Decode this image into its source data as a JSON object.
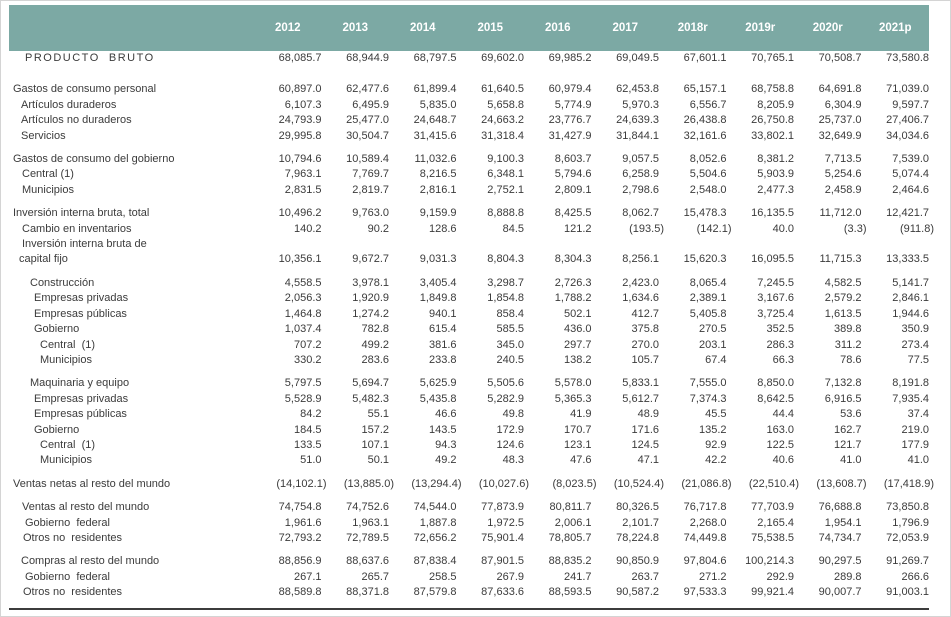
{
  "colors": {
    "header_bg": "#7CA9A4",
    "header_text": "#FFFFFF",
    "body_text": "#3B3B3B",
    "rule": "#3C3C3C"
  },
  "table": {
    "columns": [
      "2012",
      "2013",
      "2014",
      "2015",
      "2016",
      "2017",
      "2018r",
      "2019r",
      "2020r",
      "2021p"
    ],
    "rows": [
      {
        "label": "PRODUCTO  BRUTO",
        "indent": 16,
        "caps": true,
        "values": [
          "68,085.7",
          "68,944.9",
          "68,797.5",
          "69,602.0",
          "69,985.2",
          "69,049.5",
          "67,601.1",
          "70,765.1",
          "70,508.7",
          "73,580.8"
        ]
      },
      {
        "spacer": true,
        "h": 16
      },
      {
        "label": "Gastos de consumo personal",
        "indent": 4,
        "values": [
          "60,897.0",
          "62,477.6",
          "61,899.4",
          "61,640.5",
          "60,979.4",
          "62,453.8",
          "65,157.1",
          "68,758.8",
          "64,691.8",
          "71,039.0"
        ]
      },
      {
        "label": "Artículos duraderos",
        "indent": 12,
        "values": [
          "6,107.3",
          "6,495.9",
          "5,835.0",
          "5,658.8",
          "5,774.9",
          "5,970.3",
          "6,556.7",
          "8,205.9",
          "6,304.9",
          "9,597.7"
        ]
      },
      {
        "label": "Artículos no duraderos",
        "indent": 12,
        "values": [
          "24,793.9",
          "25,477.0",
          "24,648.7",
          "24,663.2",
          "23,776.7",
          "24,639.3",
          "26,438.8",
          "26,750.8",
          "25,737.0",
          "27,406.7"
        ]
      },
      {
        "label": "Servicios",
        "indent": 12,
        "values": [
          "29,995.8",
          "30,504.7",
          "31,415.6",
          "31,318.4",
          "31,427.9",
          "31,844.1",
          "32,161.6",
          "33,802.1",
          "32,649.9",
          "34,034.6"
        ]
      },
      {
        "spacer": true,
        "h": 8
      },
      {
        "label": "Gastos de consumo del gobierno",
        "indent": 4,
        "values": [
          "10,794.6",
          "10,589.4",
          "11,032.6",
          "9,100.3",
          "8,603.7",
          "9,057.5",
          "8,052.6",
          "8,381.2",
          "7,713.5",
          "7,539.0"
        ]
      },
      {
        "label": "Central (1)",
        "indent": 13,
        "values": [
          "7,963.1",
          "7,769.7",
          "8,216.5",
          "6,348.1",
          "5,794.6",
          "6,258.9",
          "5,504.6",
          "5,903.9",
          "5,254.6",
          "5,074.4"
        ]
      },
      {
        "label": "Municipios",
        "indent": 13,
        "values": [
          "2,831.5",
          "2,819.7",
          "2,816.1",
          "2,752.1",
          "2,809.1",
          "2,798.6",
          "2,548.0",
          "2,477.3",
          "2,458.9",
          "2,464.6"
        ]
      },
      {
        "spacer": true,
        "h": 8
      },
      {
        "label": "Inversión interna bruta, total",
        "indent": 4,
        "values": [
          "10,496.2",
          "9,763.0",
          "9,159.9",
          "8,888.8",
          "8,425.5",
          "8,062.7",
          "15,478.3",
          "16,135.5",
          "11,712.0",
          "12,421.7"
        ]
      },
      {
        "label": "Cambio en inventarios",
        "indent": 13,
        "values": [
          "140.2",
          "90.2",
          "128.6",
          "84.5",
          "121.2",
          "(193.5)",
          "(142.1)",
          "40.0",
          "(3.3)",
          "(911.8)"
        ]
      },
      {
        "label": "Inversión interna bruta de",
        "indent": 13,
        "values": [
          "",
          "",
          "",
          "",
          "",
          "",
          "",
          "",
          "",
          ""
        ]
      },
      {
        "label": "capital fijo",
        "indent": 10,
        "values": [
          "10,356.1",
          "9,672.7",
          "9,031.3",
          "8,804.3",
          "8,304.3",
          "8,256.1",
          "15,620.3",
          "16,095.5",
          "11,715.3",
          "13,333.5"
        ]
      },
      {
        "spacer": true,
        "h": 8
      },
      {
        "label": "Construcción",
        "indent": 21,
        "values": [
          "4,558.5",
          "3,978.1",
          "3,405.4",
          "3,298.7",
          "2,726.3",
          "2,423.0",
          "8,065.4",
          "7,245.5",
          "4,582.5",
          "5,141.7"
        ]
      },
      {
        "label": "Empresas privadas",
        "indent": 25,
        "values": [
          "2,056.3",
          "1,920.9",
          "1,849.8",
          "1,854.8",
          "1,788.2",
          "1,634.6",
          "2,389.1",
          "3,167.6",
          "2,579.2",
          "2,846.1"
        ]
      },
      {
        "label": "Empresas públicas",
        "indent": 25,
        "values": [
          "1,464.8",
          "1,274.2",
          "940.1",
          "858.4",
          "502.1",
          "412.7",
          "5,405.8",
          "3,725.4",
          "1,613.5",
          "1,944.6"
        ]
      },
      {
        "label": "Gobierno",
        "indent": 25,
        "values": [
          "1,037.4",
          "782.8",
          "615.4",
          "585.5",
          "436.0",
          "375.8",
          "270.5",
          "352.5",
          "389.8",
          "350.9"
        ]
      },
      {
        "label": "Central  (1)",
        "indent": 31,
        "values": [
          "707.2",
          "499.2",
          "381.6",
          "345.0",
          "297.7",
          "270.0",
          "203.1",
          "286.3",
          "311.2",
          "273.4"
        ]
      },
      {
        "label": "Municipios",
        "indent": 31,
        "values": [
          "330.2",
          "283.6",
          "233.8",
          "240.5",
          "138.2",
          "105.7",
          "67.4",
          "66.3",
          "78.6",
          "77.5"
        ]
      },
      {
        "spacer": true,
        "h": 8
      },
      {
        "label": "Maquinaria y equipo",
        "indent": 21,
        "values": [
          "5,797.5",
          "5,694.7",
          "5,625.9",
          "5,505.6",
          "5,578.0",
          "5,833.1",
          "7,555.0",
          "8,850.0",
          "7,132.8",
          "8,191.8"
        ]
      },
      {
        "label": "Empresas privadas",
        "indent": 25,
        "values": [
          "5,528.9",
          "5,482.3",
          "5,435.8",
          "5,282.9",
          "5,365.3",
          "5,612.7",
          "7,374.3",
          "8,642.5",
          "6,916.5",
          "7,935.4"
        ]
      },
      {
        "label": "Empresas públicas",
        "indent": 25,
        "values": [
          "84.2",
          "55.1",
          "46.6",
          "49.8",
          "41.9",
          "48.9",
          "45.5",
          "44.4",
          "53.6",
          "37.4"
        ]
      },
      {
        "label": "Gobierno",
        "indent": 25,
        "values": [
          "184.5",
          "157.2",
          "143.5",
          "172.9",
          "170.7",
          "171.6",
          "135.2",
          "163.0",
          "162.7",
          "219.0"
        ]
      },
      {
        "label": "Central  (1)",
        "indent": 31,
        "values": [
          "133.5",
          "107.1",
          "94.3",
          "124.6",
          "123.1",
          "124.5",
          "92.9",
          "122.5",
          "121.7",
          "177.9"
        ]
      },
      {
        "label": "Municipios",
        "indent": 31,
        "values": [
          "51.0",
          "50.1",
          "49.2",
          "48.3",
          "47.6",
          "47.1",
          "42.2",
          "40.6",
          "41.0",
          "41.0"
        ]
      },
      {
        "spacer": true,
        "h": 8
      },
      {
        "label": "Ventas netas al resto del mundo",
        "indent": 4,
        "values": [
          "(14,102.1)",
          "(13,885.0)",
          "(13,294.4)",
          "(10,027.6)",
          "(8,023.5)",
          "(10,524.4)",
          "(21,086.8)",
          "(22,510.4)",
          "(13,608.7)",
          "(17,418.9)"
        ]
      },
      {
        "spacer": true,
        "h": 8
      },
      {
        "label": "Ventas al resto del mundo",
        "indent": 13,
        "values": [
          "74,754.8",
          "74,752.6",
          "74,544.0",
          "77,873.9",
          "80,811.7",
          "80,326.5",
          "76,717.8",
          "77,703.9",
          "76,688.8",
          "73,850.8"
        ]
      },
      {
        "label": "Gobierno  federal",
        "indent": 16,
        "values": [
          "1,961.6",
          "1,963.1",
          "1,887.8",
          "1,972.5",
          "2,006.1",
          "2,101.7",
          "2,268.0",
          "2,165.4",
          "1,954.1",
          "1,796.9"
        ]
      },
      {
        "label": "Otros no  residentes",
        "indent": 14,
        "values": [
          "72,793.2",
          "72,789.5",
          "72,656.2",
          "75,901.4",
          "78,805.7",
          "78,224.8",
          "74,449.8",
          "75,538.5",
          "74,734.7",
          "72,053.9"
        ]
      },
      {
        "spacer": true,
        "h": 8
      },
      {
        "label": "Compras al resto del mundo",
        "indent": 12,
        "values": [
          "88,856.9",
          "88,637.6",
          "87,838.4",
          "87,901.5",
          "88,835.2",
          "90,850.9",
          "97,804.6",
          "100,214.3",
          "90,297.5",
          "91,269.7"
        ]
      },
      {
        "label": "Gobierno  federal",
        "indent": 16,
        "values": [
          "267.1",
          "265.7",
          "258.5",
          "267.9",
          "241.7",
          "263.7",
          "271.2",
          "292.9",
          "289.8",
          "266.6"
        ]
      },
      {
        "label": "Otros no  residentes",
        "indent": 14,
        "values": [
          "88,589.8",
          "88,371.8",
          "87,579.8",
          "87,633.6",
          "88,593.5",
          "90,587.2",
          "97,533.3",
          "99,921.4",
          "90,007.7",
          "91,003.1"
        ]
      }
    ]
  }
}
